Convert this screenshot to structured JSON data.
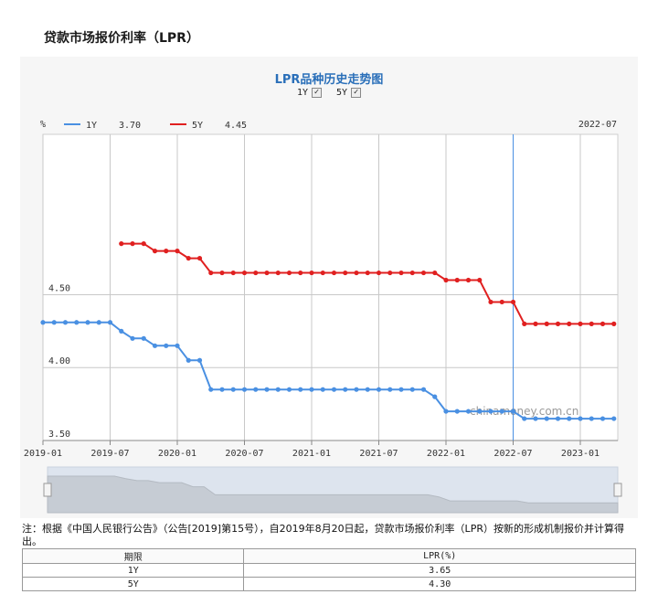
{
  "header": {
    "title": "贷款市场报价利率（LPR）"
  },
  "chart_data": {
    "type": "line",
    "title": "LPR品种历史走势图",
    "xlabel": "",
    "ylabel": "%",
    "ylim": [
      3.5,
      5.6
    ],
    "yticks": [
      "3.50",
      "4.00",
      "4.50"
    ],
    "ytick_values": [
      3.5,
      4.0,
      4.5
    ],
    "xticks": [
      "2019-01",
      "2019-07",
      "2020-01",
      "2020-07",
      "2021-01",
      "2021-07",
      "2022-01",
      "2022-07",
      "2023-01"
    ],
    "grid": true,
    "legend_position": "top-left",
    "x": [
      "2019-01",
      "2019-02",
      "2019-03",
      "2019-04",
      "2019-05",
      "2019-06",
      "2019-07",
      "2019-08",
      "2019-09",
      "2019-10",
      "2019-11",
      "2019-12",
      "2020-01",
      "2020-02",
      "2020-03",
      "2020-04",
      "2020-05",
      "2020-06",
      "2020-07",
      "2020-08",
      "2020-09",
      "2020-10",
      "2020-11",
      "2020-12",
      "2021-01",
      "2021-02",
      "2021-03",
      "2021-04",
      "2021-05",
      "2021-06",
      "2021-07",
      "2021-08",
      "2021-09",
      "2021-10",
      "2021-11",
      "2021-12",
      "2022-01",
      "2022-02",
      "2022-03",
      "2022-04",
      "2022-05",
      "2022-06",
      "2022-07",
      "2022-08",
      "2022-09",
      "2022-10",
      "2022-11",
      "2022-12",
      "2023-01",
      "2023-02",
      "2023-03",
      "2023-04"
    ],
    "series": [
      {
        "name": "1Y",
        "color": "#4a90e2",
        "values": [
          4.31,
          4.31,
          4.31,
          4.31,
          4.31,
          4.31,
          4.31,
          4.25,
          4.2,
          4.2,
          4.15,
          4.15,
          4.15,
          4.05,
          4.05,
          3.85,
          3.85,
          3.85,
          3.85,
          3.85,
          3.85,
          3.85,
          3.85,
          3.85,
          3.85,
          3.85,
          3.85,
          3.85,
          3.85,
          3.85,
          3.85,
          3.85,
          3.85,
          3.85,
          3.85,
          3.8,
          3.7,
          3.7,
          3.7,
          3.7,
          3.7,
          3.7,
          3.7,
          3.65,
          3.65,
          3.65,
          3.65,
          3.65,
          3.65,
          3.65,
          3.65,
          3.65
        ]
      },
      {
        "name": "5Y",
        "color": "#e02020",
        "values": [
          null,
          null,
          null,
          null,
          null,
          null,
          null,
          4.85,
          4.85,
          4.85,
          4.8,
          4.8,
          4.8,
          4.75,
          4.75,
          4.65,
          4.65,
          4.65,
          4.65,
          4.65,
          4.65,
          4.65,
          4.65,
          4.65,
          4.65,
          4.65,
          4.65,
          4.65,
          4.65,
          4.65,
          4.65,
          4.65,
          4.65,
          4.65,
          4.65,
          4.65,
          4.6,
          4.6,
          4.6,
          4.6,
          4.45,
          4.45,
          4.45,
          4.3,
          4.3,
          4.3,
          4.3,
          4.3,
          4.3,
          4.3,
          4.3,
          4.3
        ]
      }
    ],
    "crosshair": {
      "x": "2022-07",
      "values": {
        "1Y": "3.70",
        "5Y": "4.45"
      }
    },
    "watermark": "chinamoney.com.cn"
  },
  "toggles": [
    {
      "label": "1Y",
      "checked": "✓"
    },
    {
      "label": "5Y",
      "checked": "✓"
    }
  ],
  "legend": [
    {
      "label": "1Y",
      "value": "3.70",
      "color": "#4a90e2"
    },
    {
      "label": "5Y",
      "value": "4.45",
      "color": "#e02020"
    }
  ],
  "note": "注：根据《中国人民银行公告》（公告[2019]第15号），自2019年8月20日起，贷款市场报价利率（LPR）按新的形成机制报价并计算得出。",
  "table": {
    "headers": [
      "期限",
      "LPR(%)"
    ],
    "rows": [
      [
        "1Y",
        "3.65"
      ],
      [
        "5Y",
        "4.30"
      ]
    ]
  }
}
